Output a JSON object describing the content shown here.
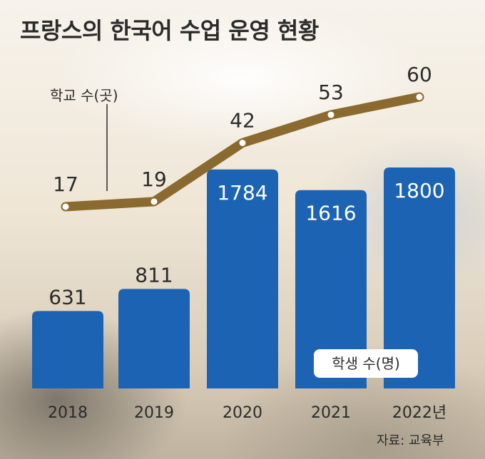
{
  "title": "프랑스의 한국어 수업 운영 현황",
  "source": "자료: 교육부",
  "chart_data": {
    "type": "bar",
    "categories": [
      "2018",
      "2019",
      "2020",
      "2021",
      "2022년"
    ],
    "series": [
      {
        "name": "학생 수(명)",
        "type": "bar",
        "values": [
          631,
          811,
          1784,
          1616,
          1800
        ],
        "color": "#1d63b3"
      },
      {
        "name": "학교 수(곳)",
        "type": "line",
        "values": [
          17,
          19,
          42,
          53,
          60
        ],
        "color": "#8a6a2e"
      }
    ],
    "legend": "inline",
    "grid": false
  }
}
